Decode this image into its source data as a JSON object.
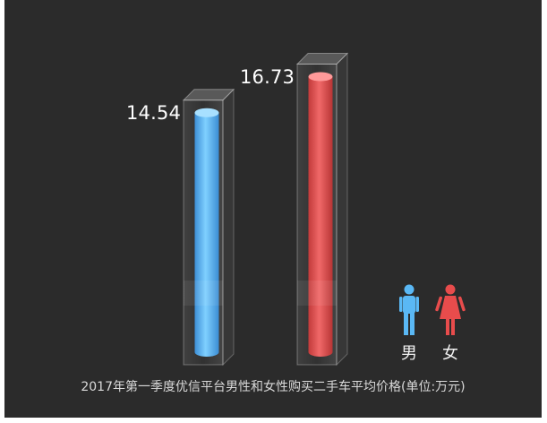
{
  "chart_data": {
    "type": "bar",
    "title": "2017年第一季度优信平台男性和女性购买二手车平均价格(单位:万元)",
    "categories": [
      "男",
      "女"
    ],
    "values": [
      14.54,
      16.73
    ],
    "value_labels": [
      "14.54",
      "16.73"
    ],
    "ylim": [
      0,
      18.5
    ],
    "grid": false,
    "legend": "bottom-right",
    "colors": [
      "#5ab8f5",
      "#e84c4c"
    ]
  },
  "legend": {
    "items": [
      {
        "label": "男",
        "icon": "male-person-icon",
        "color": "#5ab8f5"
      },
      {
        "label": "女",
        "icon": "female-person-icon",
        "color": "#e84c4c"
      }
    ]
  }
}
